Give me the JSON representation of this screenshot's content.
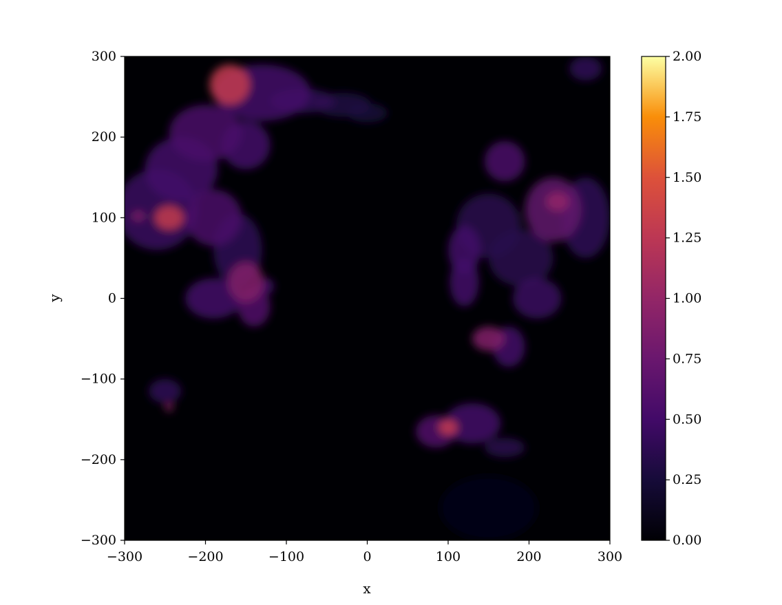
{
  "chart_data": {
    "type": "heatmap",
    "title": "",
    "xlabel": "x",
    "ylabel": "y",
    "xlim": [
      -300,
      300
    ],
    "ylim": [
      -300,
      300
    ],
    "grid": false,
    "colormap": "inferno",
    "colorbar": {
      "range": [
        0.0,
        2.0
      ],
      "ticks": [
        0.0,
        0.25,
        0.5,
        0.75,
        1.0,
        1.25,
        1.5,
        1.75,
        2.0
      ],
      "tick_labels": [
        "0.00",
        "0.25",
        "0.50",
        "0.75",
        "1.00",
        "1.25",
        "1.50",
        "1.75",
        "2.00"
      ]
    },
    "x_ticks": [
      -300,
      -200,
      -100,
      0,
      100,
      200,
      300
    ],
    "x_tick_labels": [
      "−300",
      "−200",
      "−100",
      "0",
      "100",
      "200",
      "300"
    ],
    "y_ticks": [
      -300,
      -200,
      -100,
      0,
      100,
      200,
      300
    ],
    "y_tick_labels": [
      "−300",
      "−200",
      "−100",
      "0",
      "100",
      "200",
      "300"
    ],
    "background_value": 0.02,
    "blobs": [
      {
        "x": -170,
        "y": 265,
        "rx": 25,
        "ry": 25,
        "value": 1.3
      },
      {
        "x": -130,
        "y": 255,
        "rx": 60,
        "ry": 35,
        "value": 0.5
      },
      {
        "x": -80,
        "y": 245,
        "rx": 40,
        "ry": 15,
        "value": 0.4
      },
      {
        "x": -30,
        "y": 240,
        "rx": 35,
        "ry": 15,
        "value": 0.3
      },
      {
        "x": 0,
        "y": 230,
        "rx": 25,
        "ry": 12,
        "value": 0.25
      },
      {
        "x": -200,
        "y": 205,
        "rx": 45,
        "ry": 35,
        "value": 0.55
      },
      {
        "x": -150,
        "y": 190,
        "rx": 30,
        "ry": 30,
        "value": 0.5
      },
      {
        "x": -230,
        "y": 160,
        "rx": 45,
        "ry": 40,
        "value": 0.5
      },
      {
        "x": -260,
        "y": 110,
        "rx": 50,
        "ry": 50,
        "value": 0.45
      },
      {
        "x": -245,
        "y": 100,
        "rx": 18,
        "ry": 15,
        "value": 1.3
      },
      {
        "x": -283,
        "y": 102,
        "rx": 8,
        "ry": 6,
        "value": 0.9
      },
      {
        "x": -190,
        "y": 100,
        "rx": 35,
        "ry": 35,
        "value": 0.55
      },
      {
        "x": -160,
        "y": 60,
        "rx": 30,
        "ry": 45,
        "value": 0.4
      },
      {
        "x": -150,
        "y": 20,
        "rx": 22,
        "ry": 25,
        "value": 0.9
      },
      {
        "x": -190,
        "y": 0,
        "rx": 35,
        "ry": 25,
        "value": 0.5
      },
      {
        "x": -140,
        "y": -10,
        "rx": 20,
        "ry": 25,
        "value": 0.6
      },
      {
        "x": -125,
        "y": 15,
        "rx": 10,
        "ry": 10,
        "value": 0.5
      },
      {
        "x": -250,
        "y": -115,
        "rx": 20,
        "ry": 15,
        "value": 0.4
      },
      {
        "x": -245,
        "y": -135,
        "rx": 5,
        "ry": 5,
        "value": 1.0
      },
      {
        "x": 170,
        "y": 170,
        "rx": 25,
        "ry": 25,
        "value": 0.55
      },
      {
        "x": 230,
        "y": 110,
        "rx": 35,
        "ry": 40,
        "value": 0.7
      },
      {
        "x": 235,
        "y": 120,
        "rx": 14,
        "ry": 12,
        "value": 1.0
      },
      {
        "x": 270,
        "y": 100,
        "rx": 30,
        "ry": 50,
        "value": 0.4
      },
      {
        "x": 150,
        "y": 90,
        "rx": 40,
        "ry": 40,
        "value": 0.35
      },
      {
        "x": 120,
        "y": 60,
        "rx": 20,
        "ry": 30,
        "value": 0.5
      },
      {
        "x": 120,
        "y": 20,
        "rx": 18,
        "ry": 30,
        "value": 0.5
      },
      {
        "x": 190,
        "y": 50,
        "rx": 40,
        "ry": 35,
        "value": 0.35
      },
      {
        "x": 210,
        "y": 0,
        "rx": 30,
        "ry": 25,
        "value": 0.45
      },
      {
        "x": 150,
        "y": -50,
        "rx": 20,
        "ry": 15,
        "value": 0.9
      },
      {
        "x": 175,
        "y": -60,
        "rx": 20,
        "ry": 25,
        "value": 0.5
      },
      {
        "x": 270,
        "y": 285,
        "rx": 20,
        "ry": 15,
        "value": 0.4
      },
      {
        "x": 100,
        "y": -160,
        "rx": 12,
        "ry": 10,
        "value": 1.3
      },
      {
        "x": 85,
        "y": -165,
        "rx": 25,
        "ry": 20,
        "value": 0.6
      },
      {
        "x": 130,
        "y": -155,
        "rx": 35,
        "ry": 25,
        "value": 0.5
      },
      {
        "x": 170,
        "y": -185,
        "rx": 25,
        "ry": 12,
        "value": 0.35
      },
      {
        "x": 150,
        "y": -260,
        "rx": 60,
        "ry": 40,
        "value": 0.08
      }
    ]
  }
}
